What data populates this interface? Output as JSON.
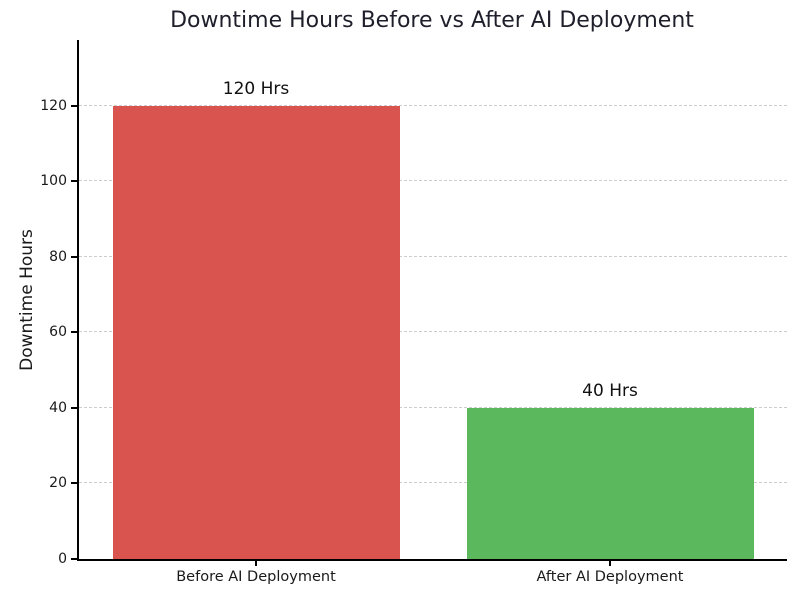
{
  "figure": {
    "background": "#ffffff"
  },
  "chart_data": {
    "type": "bar",
    "title": "Downtime Hours Before vs After AI Deployment",
    "xlabel": "",
    "ylabel": "Downtime Hours",
    "categories": [
      "Before AI Deployment",
      "After AI Deployment"
    ],
    "values": [
      120,
      40
    ],
    "bar_labels": [
      "120 Hrs",
      "40 Hrs"
    ],
    "bar_colors": [
      "#d9534f",
      "#5cb85c"
    ],
    "yticks": [
      0,
      20,
      40,
      60,
      80,
      100,
      120
    ],
    "ylim": [
      0,
      137.4
    ],
    "grid": {
      "axis": "y",
      "style": "dashed",
      "color": "#cccccc"
    },
    "axis_color": "#000000",
    "text_color": "#1a1a1a",
    "title_color": "#1f1f2b",
    "legend": null
  }
}
